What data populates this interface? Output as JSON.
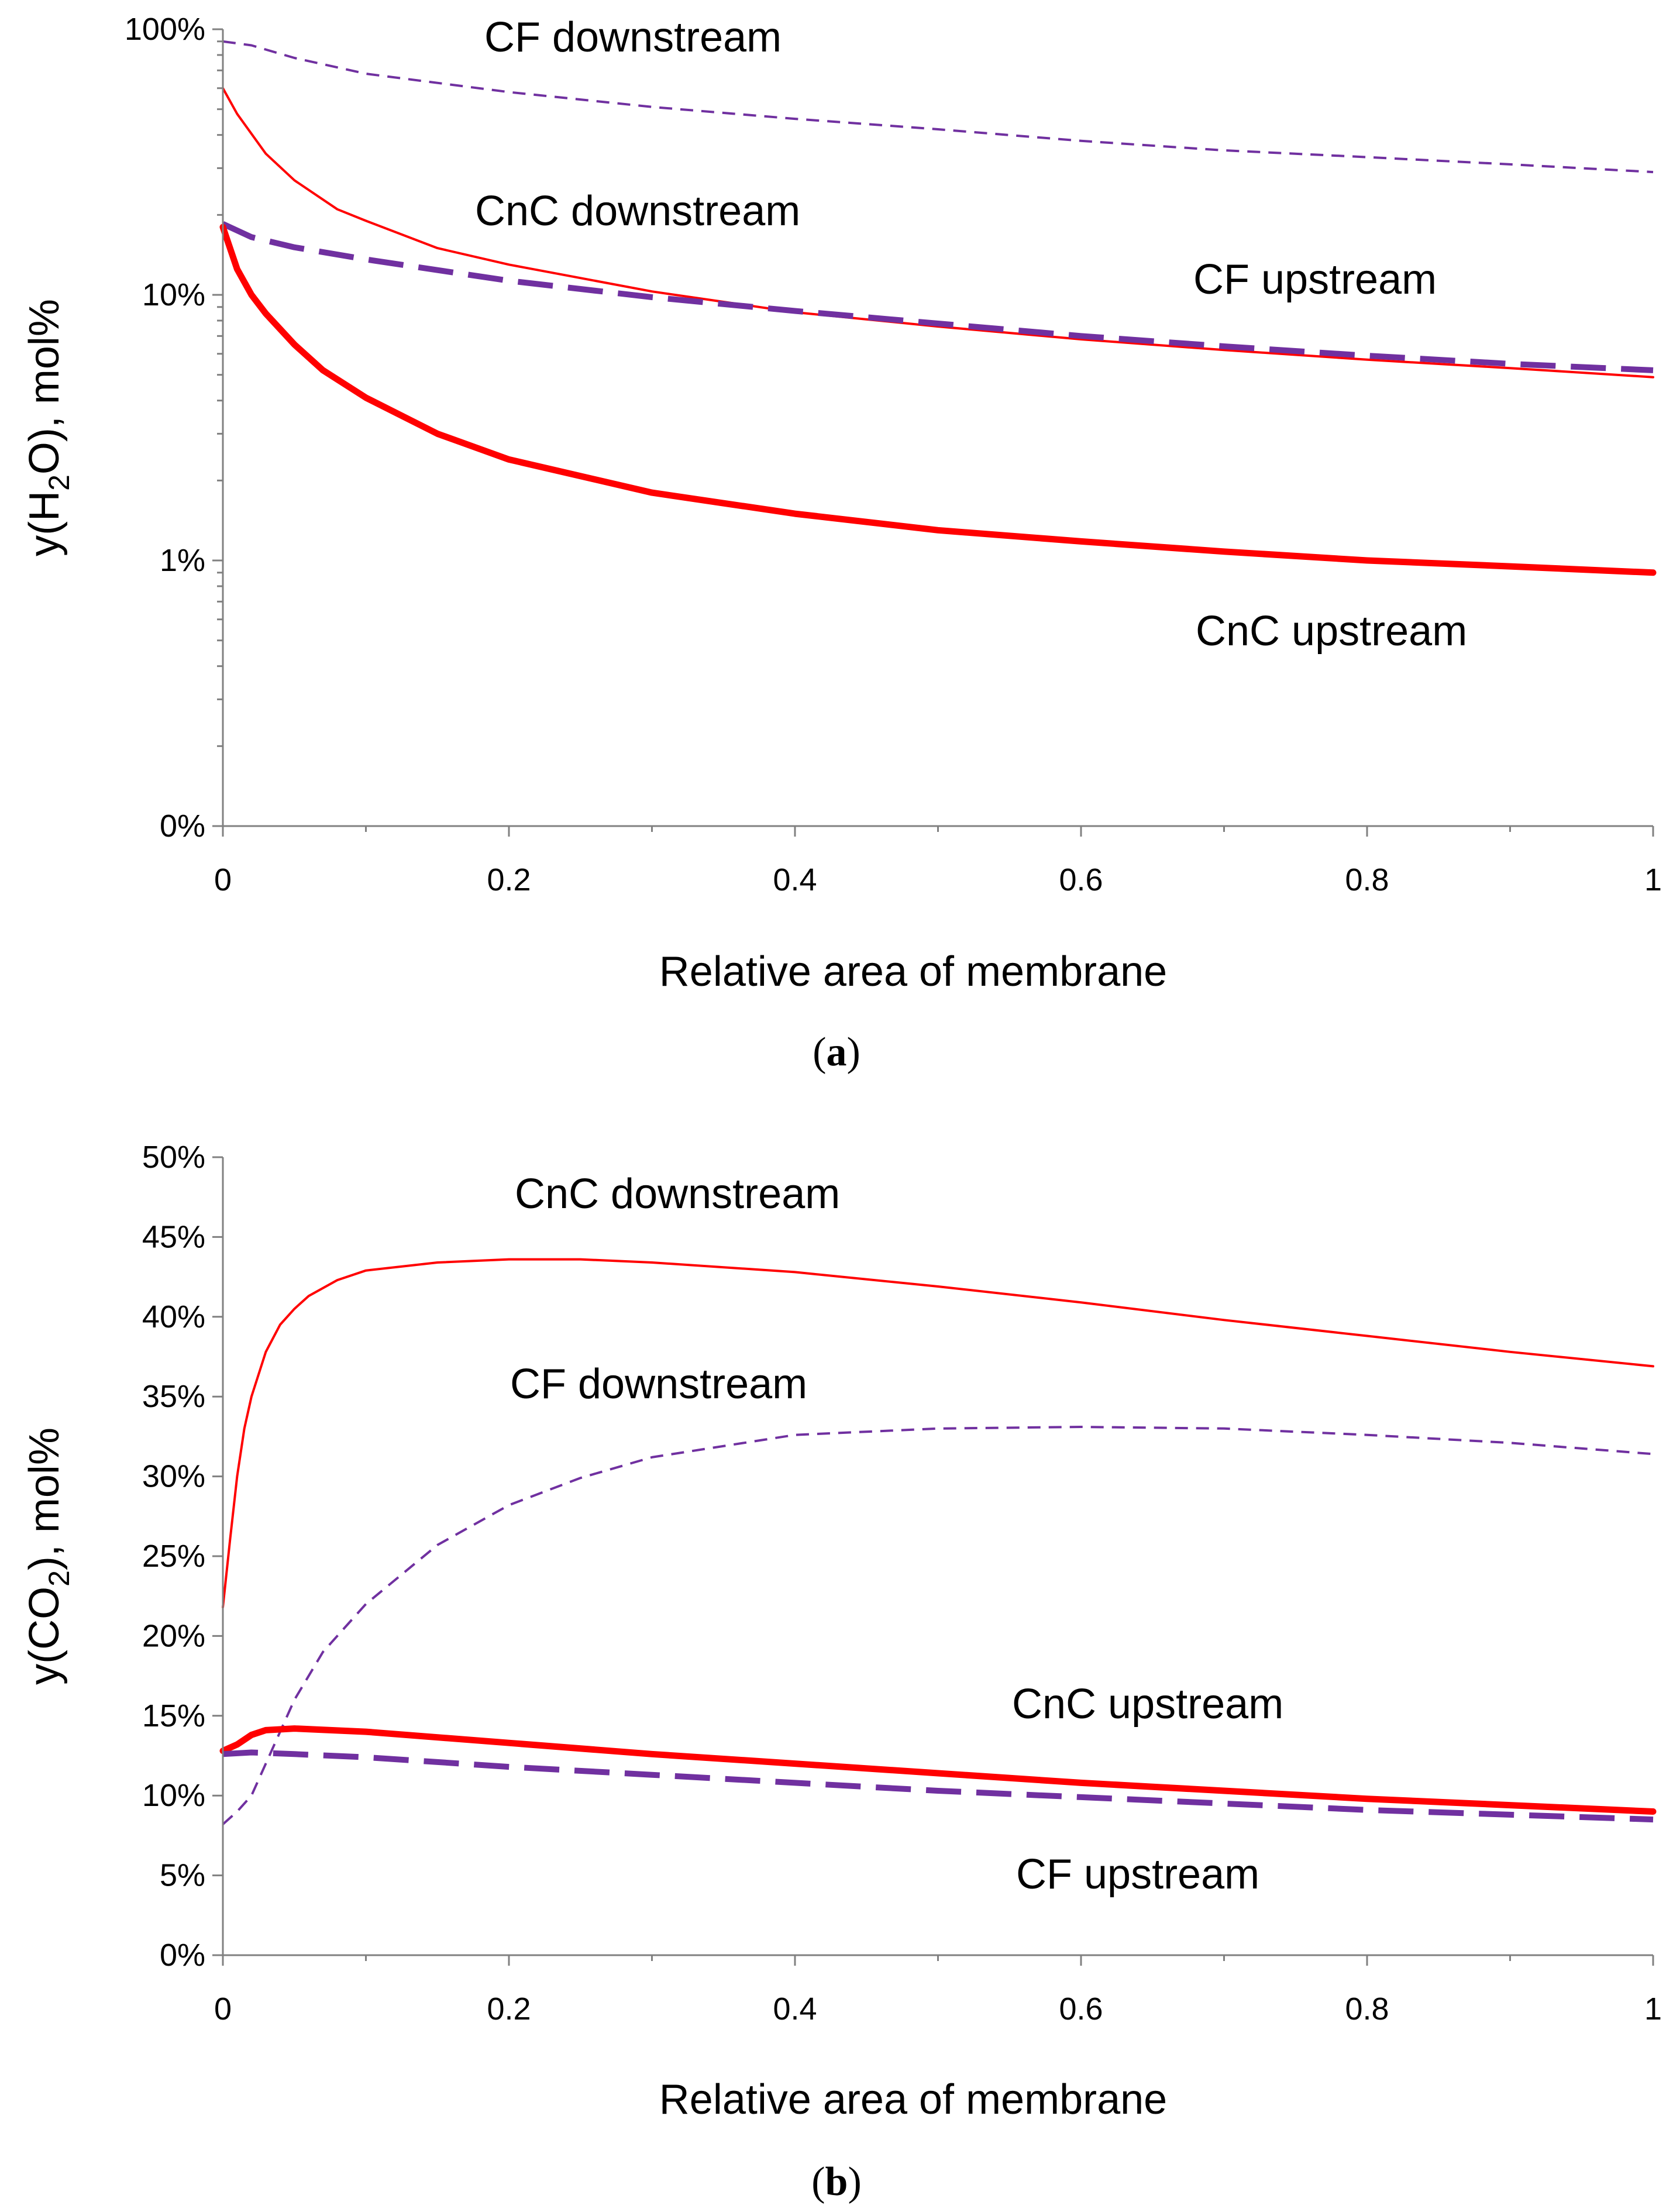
{
  "chart_data": [
    {
      "id": "a",
      "type": "line",
      "y_scale": "log",
      "caption_letter": "a",
      "xlabel": "Relative area of membrane",
      "ylabel_prefix": "y(H",
      "ylabel_sub": "2",
      "ylabel_suffix": "O), mol%",
      "xlim": [
        0,
        1
      ],
      "x_ticks": [
        0,
        0.2,
        0.4,
        0.6,
        0.8,
        1
      ],
      "x_tick_labels": [
        "0",
        "0.2",
        "0.4",
        "0.6",
        "0.8",
        "1"
      ],
      "y_ticks": [
        {
          "value": 100,
          "label": "100%"
        },
        {
          "value": 10,
          "label": "10%"
        },
        {
          "value": 1,
          "label": "1%"
        },
        {
          "value": 0.1,
          "label": "0%"
        }
      ],
      "ylim": [
        0.1,
        100
      ],
      "series": [
        {
          "name": "CF downstream",
          "style": "thin-dashed",
          "color": "#7030a0",
          "x": [
            0,
            0.02,
            0.05,
            0.1,
            0.2,
            0.3,
            0.4,
            0.5,
            0.6,
            0.7,
            0.8,
            0.9,
            1
          ],
          "y": [
            90,
            87,
            78,
            68,
            58,
            51,
            46,
            42,
            38,
            35,
            33,
            31,
            29
          ]
        },
        {
          "name": "CnC downstream",
          "style": "thin-solid",
          "color": "#ff0000",
          "x": [
            0,
            0.01,
            0.03,
            0.05,
            0.08,
            0.1,
            0.15,
            0.2,
            0.3,
            0.4,
            0.5,
            0.6,
            0.7,
            0.8,
            0.9,
            1
          ],
          "y": [
            60,
            48,
            34,
            27,
            21,
            19,
            15,
            13,
            10.3,
            8.6,
            7.6,
            6.8,
            6.2,
            5.7,
            5.3,
            4.9
          ],
          "label_position": "upper-middle"
        },
        {
          "name": "CF upstream",
          "style": "thick-dashed",
          "color": "#7030a0",
          "x": [
            0,
            0.02,
            0.05,
            0.1,
            0.2,
            0.3,
            0.4,
            0.5,
            0.6,
            0.7,
            0.8,
            0.9,
            1
          ],
          "y": [
            18.5,
            16.5,
            15.1,
            13.6,
            11.3,
            9.8,
            8.7,
            7.8,
            7,
            6.4,
            5.9,
            5.5,
            5.2
          ]
        },
        {
          "name": "CnC upstream",
          "style": "thick-solid",
          "color": "#ff0000",
          "x": [
            0,
            0.01,
            0.02,
            0.03,
            0.05,
            0.07,
            0.1,
            0.15,
            0.2,
            0.3,
            0.4,
            0.5,
            0.6,
            0.7,
            0.8,
            0.9,
            1
          ],
          "y": [
            18,
            12.5,
            10,
            8.5,
            6.5,
            5.2,
            4.1,
            3,
            2.4,
            1.8,
            1.5,
            1.3,
            1.18,
            1.08,
            1.0,
            0.95,
            0.9
          ]
        }
      ],
      "annotations": [
        "CF downstream",
        "CnC downstream",
        "CF upstream",
        "CnC upstream"
      ]
    },
    {
      "id": "b",
      "type": "line",
      "y_scale": "linear",
      "caption_letter": "b",
      "xlabel": "Relative area of membrane",
      "ylabel_prefix": "y(CO",
      "ylabel_sub": "2",
      "ylabel_suffix": "), mol%",
      "xlim": [
        0,
        1
      ],
      "x_ticks": [
        0,
        0.2,
        0.4,
        0.6,
        0.8,
        1
      ],
      "x_tick_labels": [
        "0",
        "0.2",
        "0.4",
        "0.6",
        "0.8",
        "1"
      ],
      "y_ticks": [
        {
          "value": 0,
          "label": "0%"
        },
        {
          "value": 5,
          "label": "5%"
        },
        {
          "value": 10,
          "label": "10%"
        },
        {
          "value": 15,
          "label": "15%"
        },
        {
          "value": 20,
          "label": "20%"
        },
        {
          "value": 25,
          "label": "25%"
        },
        {
          "value": 30,
          "label": "30%"
        },
        {
          "value": 35,
          "label": "35%"
        },
        {
          "value": 40,
          "label": "40%"
        },
        {
          "value": 45,
          "label": "45%"
        },
        {
          "value": 50,
          "label": "50%"
        }
      ],
      "ylim": [
        0,
        50
      ],
      "series": [
        {
          "name": "CnC downstream",
          "style": "thin-solid",
          "color": "#ff0000",
          "x": [
            0,
            0.005,
            0.01,
            0.015,
            0.02,
            0.03,
            0.04,
            0.05,
            0.06,
            0.08,
            0.1,
            0.15,
            0.2,
            0.25,
            0.3,
            0.4,
            0.5,
            0.6,
            0.7,
            0.8,
            0.9,
            1
          ],
          "y": [
            21.8,
            26,
            30,
            33,
            35,
            37.8,
            39.5,
            40.5,
            41.3,
            42.3,
            42.9,
            43.4,
            43.6,
            43.6,
            43.4,
            42.8,
            41.9,
            40.9,
            39.8,
            38.8,
            37.8,
            36.9
          ]
        },
        {
          "name": "CF downstream",
          "style": "thin-dashed",
          "color": "#7030a0",
          "x": [
            0,
            0.01,
            0.02,
            0.03,
            0.05,
            0.07,
            0.1,
            0.15,
            0.2,
            0.25,
            0.3,
            0.4,
            0.5,
            0.6,
            0.7,
            0.8,
            0.9,
            1
          ],
          "y": [
            8.2,
            9,
            10,
            12,
            16,
            19,
            22,
            25.7,
            28.2,
            29.9,
            31.2,
            32.6,
            33,
            33.1,
            33,
            32.6,
            32.1,
            31.4
          ]
        },
        {
          "name": "CnC upstream",
          "style": "thick-solid",
          "color": "#ff0000",
          "x": [
            0,
            0.01,
            0.02,
            0.03,
            0.05,
            0.1,
            0.2,
            0.3,
            0.4,
            0.5,
            0.6,
            0.7,
            0.8,
            0.9,
            1
          ],
          "y": [
            12.8,
            13.2,
            13.8,
            14.1,
            14.2,
            14,
            13.3,
            12.6,
            12,
            11.4,
            10.8,
            10.3,
            9.8,
            9.4,
            9
          ]
        },
        {
          "name": "CF upstream",
          "style": "thick-dashed",
          "color": "#7030a0",
          "x": [
            0,
            0.02,
            0.05,
            0.1,
            0.2,
            0.3,
            0.4,
            0.5,
            0.6,
            0.7,
            0.8,
            0.9,
            1
          ],
          "y": [
            12.6,
            12.7,
            12.6,
            12.4,
            11.8,
            11.3,
            10.8,
            10.3,
            9.9,
            9.5,
            9.1,
            8.8,
            8.5
          ]
        }
      ],
      "annotations": [
        "CnC downstream",
        "CF downstream",
        "CnC upstream",
        "CF upstream"
      ]
    }
  ]
}
